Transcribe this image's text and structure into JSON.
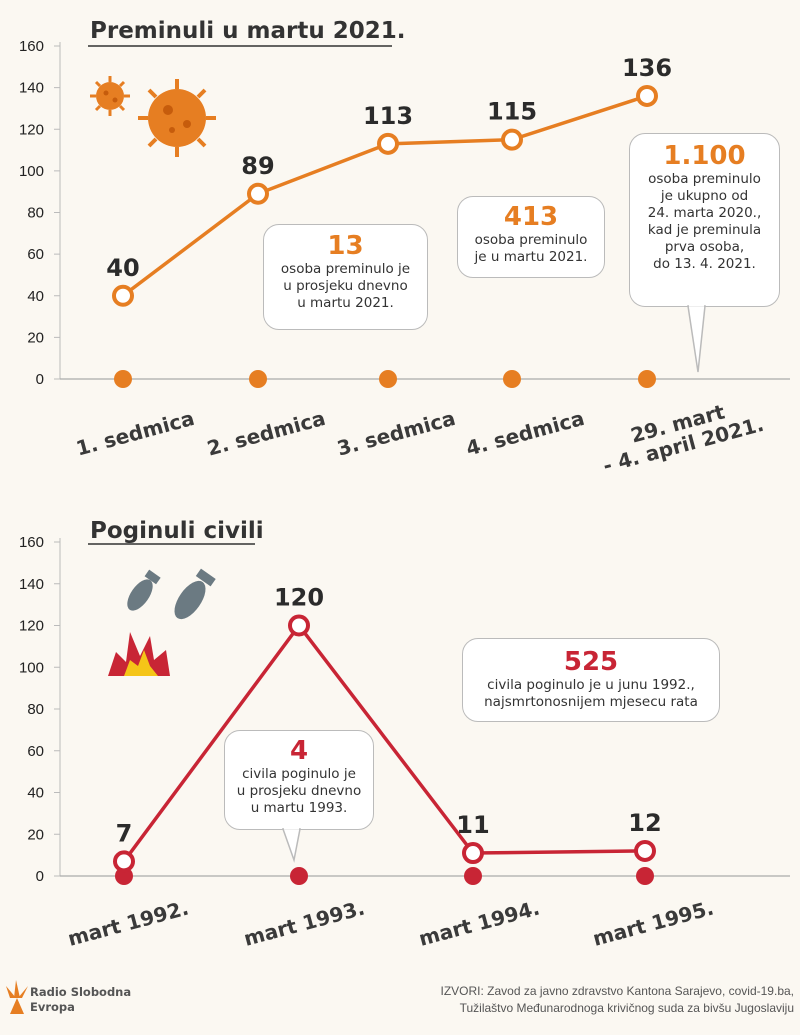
{
  "colors": {
    "top": "#e67e22",
    "bottom": "#c82535",
    "axis": "#999999"
  },
  "chart_data": [
    {
      "type": "line",
      "title": "Preminuli u martu 2021.",
      "categories": [
        "1. sedmica",
        "2. sedmica",
        "3. sedmica",
        "4. sedmica",
        "29. mart\n- 4. april 2021."
      ],
      "values": [
        40,
        89,
        113,
        115,
        136
      ],
      "value_labels": [
        "40",
        "89",
        "113",
        "115",
        "136"
      ],
      "yticks": [
        0,
        20,
        40,
        60,
        80,
        100,
        120,
        140,
        160
      ],
      "ylim": [
        0,
        160
      ],
      "annotations": [
        {
          "number": "13",
          "text": [
            "osoba preminulo je",
            "u prosjeku dnevno",
            "u martu 2021."
          ]
        },
        {
          "number": "413",
          "text": [
            "osoba preminulo",
            "je u martu 2021."
          ]
        },
        {
          "number": "1.100",
          "text": [
            "osoba preminulo",
            "je ukupno od",
            "24. marta 2020.,",
            "kad je preminula",
            "prva osoba,",
            "do 13. 4. 2021."
          ]
        }
      ]
    },
    {
      "type": "line",
      "title": "Poginuli civili",
      "categories": [
        "mart 1992.",
        "mart 1993.",
        "mart 1994.",
        "mart 1995."
      ],
      "values": [
        7,
        120,
        11,
        12
      ],
      "value_labels": [
        "7",
        "120",
        "11",
        "12"
      ],
      "yticks": [
        0,
        20,
        40,
        60,
        80,
        100,
        120,
        140,
        160
      ],
      "ylim": [
        0,
        160
      ],
      "annotations": [
        {
          "number": "525",
          "text": [
            "civila poginulo je u junu 1992.,",
            "najsmrtonosnijem mjesecu rata"
          ]
        },
        {
          "number": "4",
          "text": [
            "civila poginulo je",
            "u prosjeku dnevno",
            "u martu 1993."
          ]
        }
      ]
    }
  ],
  "footer": {
    "logo": [
      "Radio Slobodna",
      "Evropa"
    ],
    "source": [
      "IZVORI: Zavod za javno zdravstvo Kantona Sarajevo, covid-19.ba,",
      "Tužilaštvo Međunarodnoga krivičnog suda za bivšu Jugoslaviju"
    ]
  }
}
